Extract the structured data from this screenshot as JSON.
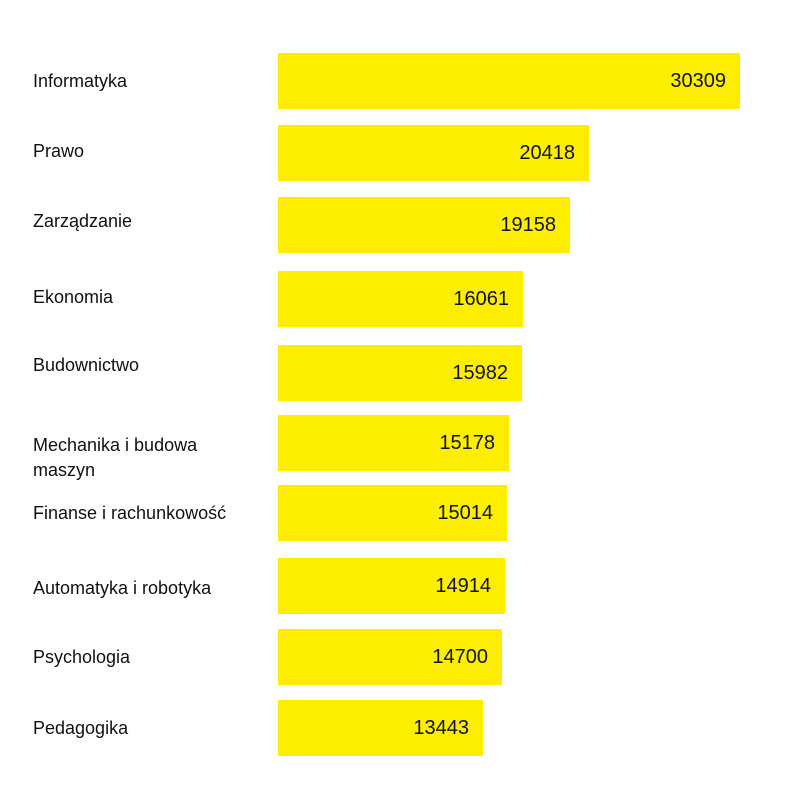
{
  "chart_data": {
    "type": "bar",
    "orientation": "horizontal",
    "categories": [
      "Informatyka",
      "Prawo",
      "Zarządzanie",
      "Ekonomia",
      "Budownictwo",
      "Mechanika i budowa maszyn",
      "Finanse i rachunkowość",
      "Automatyka i robotyka",
      "Psychologia",
      "Pedagogika"
    ],
    "values": [
      30309,
      20418,
      19158,
      16061,
      15982,
      15178,
      15014,
      14914,
      14700,
      13443
    ],
    "value_labels": [
      "30309",
      "20418",
      "19158",
      "16061",
      "15982",
      "15178",
      "15014",
      "14914",
      "14700",
      "13443"
    ],
    "xlim": [
      0,
      30309
    ],
    "grid": false,
    "legend": "none",
    "bar_color": "#FDEE00"
  }
}
